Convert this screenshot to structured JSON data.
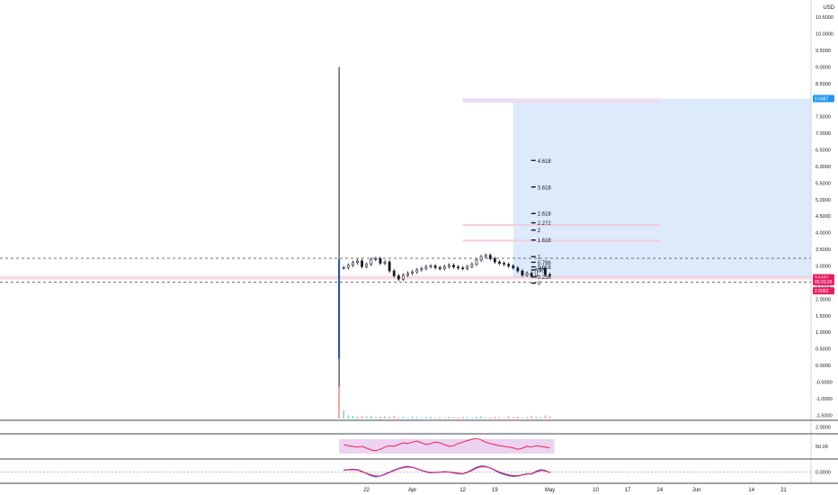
{
  "chart_data": [
    {
      "type": "candlestick",
      "currency_label": "USD",
      "y_ticks": [
        10.5,
        10.0,
        9.5,
        9.0,
        8.5,
        8.0,
        7.5,
        7.0,
        6.5,
        6.0,
        5.5,
        5.0,
        4.5,
        4.0,
        3.5,
        3.0,
        2.5,
        2.0,
        1.5,
        1.0,
        0.5,
        0.0,
        -0.5,
        -1.0,
        -1.5
      ],
      "y_tick_labels": [
        "10.5000",
        "10.0000",
        "9.5000",
        "9.0000",
        "8.5000",
        "8.0000",
        "7.5000",
        "7.0000",
        "6.5000",
        "6.0000",
        "5.5000",
        "5.0000",
        "4.5000",
        "4.0000",
        "3.5000",
        "3.0000",
        "2.5000",
        "2.0000",
        "1.5000",
        "1.0000",
        "0.5000",
        "0.0000",
        "-0.5000",
        "-1.0000",
        "-1.5000"
      ],
      "ylim": [
        -1.6,
        10.8
      ],
      "x_ticks": [
        {
          "label": "22",
          "day": 22
        },
        {
          "label": "Apr",
          "day": 32
        },
        {
          "label": "12",
          "day": 43
        },
        {
          "label": "19",
          "day": 50
        },
        {
          "label": "May",
          "day": 62
        },
        {
          "label": "10",
          "day": 72
        },
        {
          "label": "17",
          "day": 79
        },
        {
          "label": "24",
          "day": 86
        },
        {
          "label": "Jun",
          "day": 94
        },
        {
          "label": "14",
          "day": 106
        },
        {
          "label": "21",
          "day": 113
        }
      ],
      "xlim": [
        -58,
        119
      ],
      "spike": {
        "day": 16,
        "high": 9.0,
        "low": -1.5,
        "body_top": 3.2,
        "body_bottom": 0.2
      },
      "closes": [
        2.95,
        3.02,
        3.1,
        3.15,
        2.98,
        3.05,
        3.2,
        3.22,
        3.08,
        3.12,
        2.85,
        2.7,
        2.6,
        2.72,
        2.78,
        2.82,
        2.88,
        2.92,
        2.98,
        3.0,
        2.95,
        2.92,
        2.98,
        3.02,
        2.97,
        2.94,
        2.92,
        2.98,
        3.05,
        3.18,
        3.28,
        3.32,
        3.22,
        3.12,
        3.08,
        3.05,
        3.0,
        2.94,
        2.85,
        2.72,
        2.78,
        2.7,
        2.88,
        2.92,
        2.74,
        2.72
      ],
      "first_day": 17,
      "horizontal_levels": [
        {
          "value": 3.23,
          "style": "dashed",
          "color": "#444444"
        },
        {
          "value": 2.51,
          "style": "dashed",
          "color": "#444444"
        },
        {
          "value": 2.6442,
          "style": "band",
          "color": "#f7c9d6"
        }
      ],
      "position_box": {
        "from_day": 54,
        "to_day": 119,
        "top": 8.0467,
        "bottom": 2.6442,
        "color": "#dceafb"
      },
      "fib_levels": [
        {
          "label": "4.618",
          "value": 6.18
        },
        {
          "label": "3.618",
          "value": 5.38
        },
        {
          "label": "2.618",
          "value": 4.58
        },
        {
          "label": "2.272",
          "value": 4.3
        },
        {
          "label": "2",
          "value": 4.08
        },
        {
          "label": "1.618",
          "value": 3.78
        },
        {
          "label": "1",
          "value": 3.28
        },
        {
          "label": "0.786",
          "value": 3.11
        },
        {
          "label": "0.618",
          "value": 2.97
        },
        {
          "label": "0.5",
          "value": 2.88
        },
        {
          "label": "0.236",
          "value": 2.67
        },
        {
          "label": "0",
          "value": 2.48
        }
      ],
      "pink_zones": [
        {
          "from_day": 43,
          "to_day": 86,
          "top": 8.05,
          "bottom": 7.92,
          "color": "#eadcf3"
        },
        {
          "from_day": 43,
          "to_day": 86,
          "top": 4.26,
          "bottom": 4.22,
          "color": "#f5cbe0"
        },
        {
          "from_day": 43,
          "to_day": 86,
          "top": 3.79,
          "bottom": 3.75,
          "color": "#f5cbe0"
        }
      ],
      "price_badges": [
        {
          "label": "8.0467",
          "value": 8.0467,
          "color": "#2196f3"
        },
        {
          "label": "2.6442",
          "value": 2.6442,
          "color": "#e91e63"
        },
        {
          "label": "00:23:25",
          "value": 2.52,
          "color": "#e91e63"
        },
        {
          "label": "2.5063",
          "value": 2.25,
          "color": "#e91e63"
        }
      ],
      "price_plain_label": {
        "label": "2.6324",
        "value": 2.35
      }
    },
    {
      "type": "bar",
      "panel": "volume",
      "y_tick_labels": [
        "2.0000"
      ],
      "values": [
        0.9,
        0.35,
        0.3,
        0.2,
        0.3,
        0.25,
        0.3,
        0.15,
        0.2,
        0.25,
        0.2,
        0.3,
        0.15,
        0.2,
        0.1,
        0.2,
        0.15,
        0.1,
        0.15,
        0.2,
        0.1,
        0.15,
        0.1,
        0.2,
        0.15,
        0.1,
        0.2,
        0.15,
        0.1,
        0.2,
        0.25,
        0.15,
        0.1,
        0.2,
        0.15,
        0.1,
        0.25,
        0.15,
        0.2,
        0.1,
        0.15,
        0.3,
        0.2,
        0.15,
        0.35,
        0.25
      ]
    },
    {
      "type": "line",
      "panel": "oscillator",
      "y_tick_labels": [
        "50.00"
      ],
      "band": [
        30,
        70
      ],
      "series": [
        {
          "color": "#e91e63",
          "values": [
            55,
            52,
            50,
            48,
            50,
            45,
            40,
            38,
            42,
            48,
            52,
            50,
            55,
            60,
            58,
            62,
            65,
            60,
            55,
            58,
            62,
            60,
            55,
            50,
            52,
            58,
            62,
            66,
            70,
            72,
            68,
            62,
            58,
            55,
            52,
            50,
            48,
            46,
            42,
            45,
            50,
            48,
            52,
            50,
            48,
            46
          ]
        }
      ]
    },
    {
      "type": "line",
      "panel": "macd",
      "y_tick_labels": [
        "0.0000"
      ],
      "series": [
        {
          "color": "#2962ff",
          "values": [
            0.2,
            0.3,
            0.35,
            0.3,
            0.1,
            -0.2,
            -0.45,
            -0.6,
            -0.5,
            -0.25,
            0.0,
            0.25,
            0.45,
            0.6,
            0.7,
            0.6,
            0.4,
            0.2,
            0.0,
            -0.1,
            -0.05,
            0.0,
            0.05,
            0.0,
            -0.1,
            -0.2,
            -0.25,
            0.0,
            0.3,
            0.6,
            0.75,
            0.7,
            0.5,
            0.2,
            -0.1,
            -0.3,
            -0.45,
            -0.55,
            -0.5,
            -0.35,
            -0.2,
            -0.25,
            0.1,
            0.3,
            0.2,
            -0.1
          ]
        },
        {
          "color": "#e91e63",
          "values": [
            0.25,
            0.28,
            0.3,
            0.25,
            0.05,
            -0.15,
            -0.35,
            -0.5,
            -0.5,
            -0.3,
            -0.05,
            0.2,
            0.4,
            0.55,
            0.62,
            0.58,
            0.42,
            0.22,
            0.05,
            -0.05,
            -0.05,
            -0.02,
            0.02,
            0.0,
            -0.05,
            -0.15,
            -0.2,
            -0.05,
            0.2,
            0.5,
            0.66,
            0.65,
            0.5,
            0.25,
            0.0,
            -0.2,
            -0.35,
            -0.45,
            -0.45,
            -0.35,
            -0.25,
            -0.2,
            0.0,
            0.2,
            0.15,
            -0.05
          ]
        }
      ]
    }
  ]
}
